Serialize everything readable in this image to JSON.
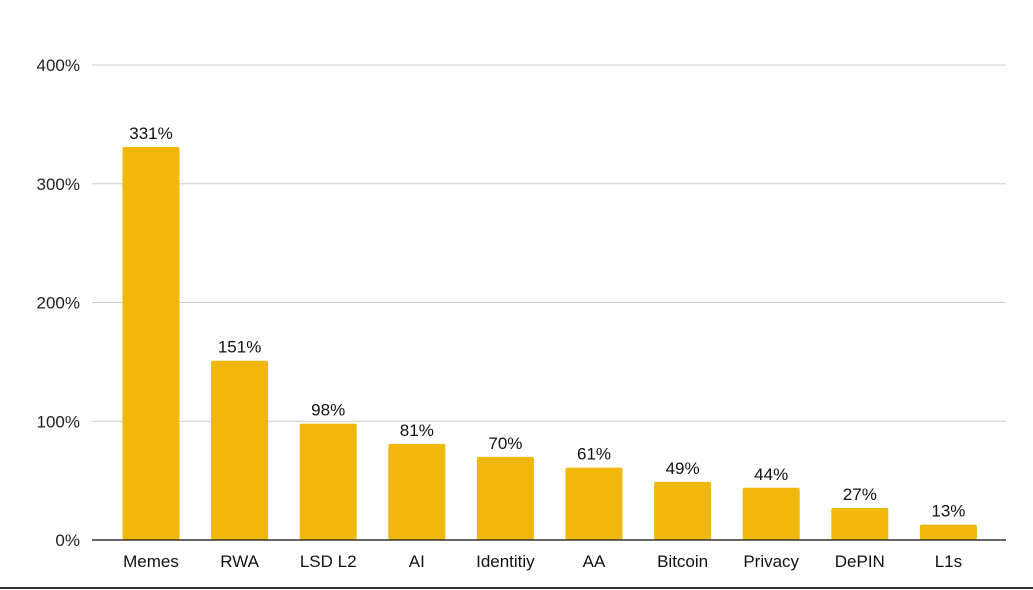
{
  "chart_data": {
    "type": "bar",
    "categories": [
      "Memes",
      "RWA",
      "LSD L2",
      "AI",
      "Identitiy",
      "AA",
      "Bitcoin",
      "Privacy",
      "DePIN",
      "L1s"
    ],
    "values": [
      331,
      151,
      98,
      81,
      70,
      61,
      49,
      44,
      27,
      13
    ],
    "data_labels": [
      "331%",
      "151%",
      "98%",
      "81%",
      "70%",
      "61%",
      "49%",
      "44%",
      "27%",
      "13%"
    ],
    "y_ticks": [
      0,
      100,
      200,
      300,
      400
    ],
    "y_tick_labels": [
      "0%",
      "100%",
      "200%",
      "300%",
      "400%"
    ],
    "ylim": [
      0,
      400
    ],
    "grid": true,
    "legend": "none",
    "colors": {
      "bar": "#F1B70C",
      "grid": "#CCCCCC",
      "axis": "#333333"
    }
  }
}
